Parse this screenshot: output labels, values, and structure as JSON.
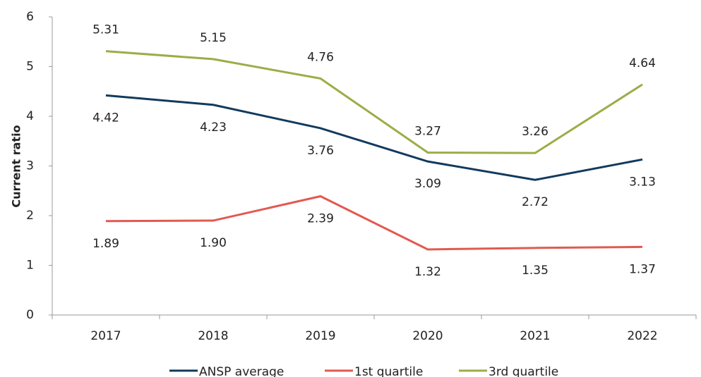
{
  "chart_data": {
    "type": "line",
    "y_label": "Current ratio",
    "categories": [
      "2017",
      "2018",
      "2019",
      "2020",
      "2021",
      "2022"
    ],
    "series": [
      {
        "name": "ANSP average",
        "color": "#123a5e",
        "values": [
          4.42,
          4.23,
          3.76,
          3.09,
          2.72,
          3.13
        ],
        "label_position": "below"
      },
      {
        "name": "1st quartile",
        "color": "#e15a50",
        "values": [
          1.89,
          1.9,
          2.39,
          1.32,
          1.35,
          1.37
        ],
        "value_labels": [
          "1.89",
          "1.90",
          "2.39",
          "1.32",
          "1.35",
          "1.37"
        ],
        "label_position": "below"
      },
      {
        "name": "3rd quartile",
        "color": "#9bad47",
        "values": [
          5.31,
          5.15,
          4.76,
          3.27,
          3.26,
          4.64
        ],
        "label_position": "above"
      }
    ],
    "ylim": [
      0,
      6
    ],
    "yticks": [
      0,
      1,
      2,
      3,
      4,
      5,
      6
    ],
    "grid": false,
    "legend": "bottom"
  }
}
